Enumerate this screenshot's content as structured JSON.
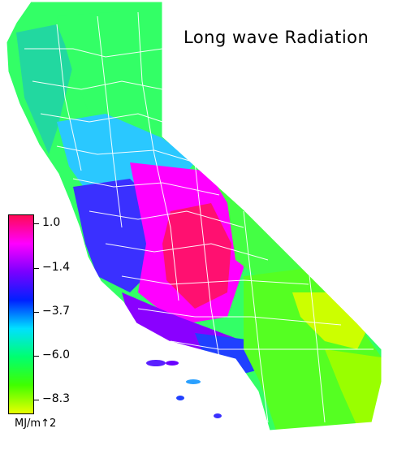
{
  "title": "Long wave Radiation",
  "legend": {
    "ticks": [
      "1.0",
      "−1.4",
      "−3.7",
      "−6.0",
      "−8.3"
    ],
    "tick_values": [
      1.0,
      -1.4,
      -3.7,
      -6.0,
      -8.3
    ],
    "unit": "MJ/m↑2",
    "scale_colors": [
      "#ff0a55",
      "#ff00ff",
      "#7a00ff",
      "#0020ff",
      "#00e0ff",
      "#00ff70",
      "#40ff00",
      "#e8ff00"
    ]
  },
  "map": {
    "region": "california",
    "land_color": "#33ff66",
    "county_line_color": "#ffffff",
    "zones": [
      {
        "name": "north-coast-band",
        "color": "#22d8a0"
      },
      {
        "name": "sacramento-valley",
        "color": "#2ac8ff"
      },
      {
        "name": "northern-mountains",
        "color": "#33ff66"
      },
      {
        "name": "sierra-nevada-east",
        "color": "#44ff44"
      },
      {
        "name": "central-coast",
        "color": "#3a30ff"
      },
      {
        "name": "san-joaquin-valley",
        "color": "#ff00ff"
      },
      {
        "name": "san-joaquin-core",
        "color": "#ff1070"
      },
      {
        "name": "southern-coast",
        "color": "#8a00ff"
      },
      {
        "name": "mojave-desert",
        "color": "#55ff22"
      },
      {
        "name": "colorado-river",
        "color": "#ccff00"
      },
      {
        "name": "los-angeles-basin",
        "color": "#2040ff"
      }
    ]
  }
}
